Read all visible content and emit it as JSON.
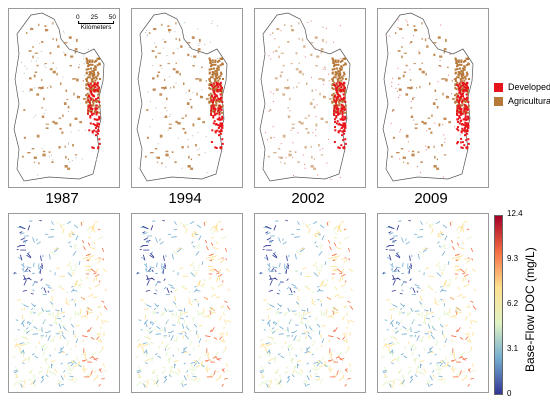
{
  "legend": {
    "items": [
      {
        "label": "Developed",
        "color": "#e8141b"
      },
      {
        "label": "Agricultural",
        "color": "#b7793a"
      }
    ]
  },
  "scale": {
    "ticks": [
      "0",
      "25",
      "50"
    ],
    "unit": "Kilometers"
  },
  "years": [
    "1987",
    "1994",
    "2002",
    "2009"
  ],
  "colorbar": {
    "label": "Base-Flow DOC (mg/L)",
    "ticks": [
      "12.4",
      "9.3",
      "6.2",
      "3.1",
      "0"
    ],
    "colors": [
      "#a50026",
      "#f46d43",
      "#fee090",
      "#e0f3c3",
      "#74add1",
      "#313695"
    ]
  }
}
